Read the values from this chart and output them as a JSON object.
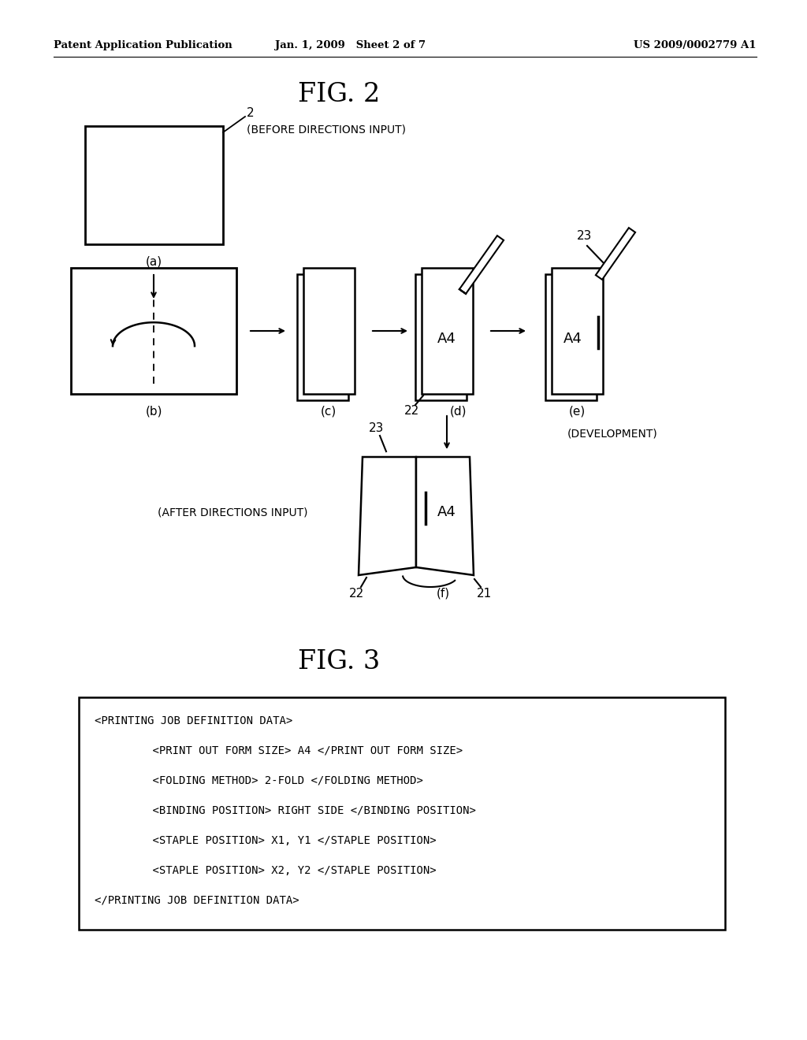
{
  "header_left": "Patent Application Publication",
  "header_center": "Jan. 1, 2009   Sheet 2 of 7",
  "header_right": "US 2009/0002779 A1",
  "fig2_title": "FIG. 2",
  "fig3_title": "FIG. 3",
  "fig3_box_lines": [
    "<PRINTING JOB DEFINITION DATA>",
    "    <PRINT OUT FORM SIZE> A4 </PRINT OUT FORM SIZE>",
    "    <FOLDING METHOD> 2-FOLD </FOLDING METHOD>",
    "    <BINDING POSITION> RIGHT SIDE </BINDING POSITION>",
    "    <STAPLE POSITION> X1, Y1 </STAPLE POSITION>",
    "    <STAPLE POSITION> X2, Y2 </STAPLE POSITION>",
    "</PRINTING JOB DEFINITION DATA>"
  ],
  "background_color": "#ffffff",
  "text_color": "#000000",
  "line_color": "#000000"
}
